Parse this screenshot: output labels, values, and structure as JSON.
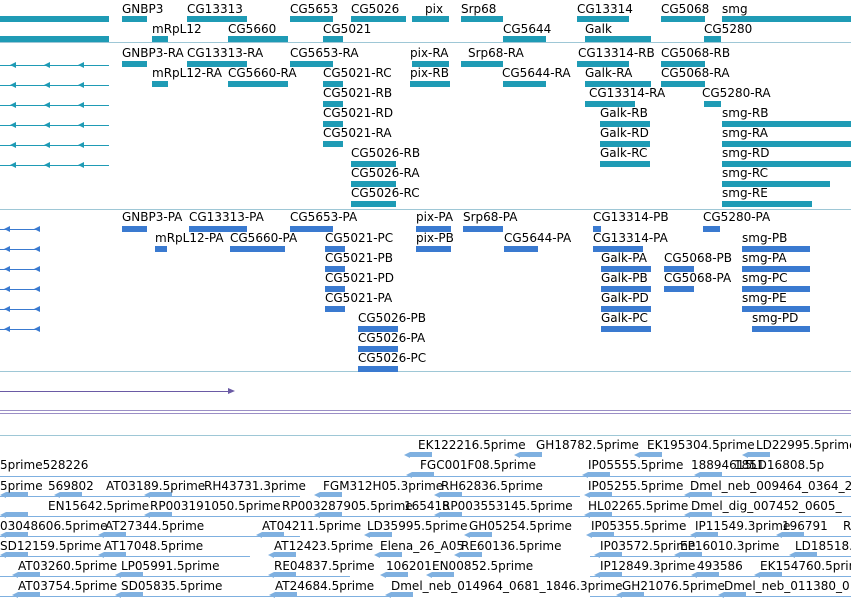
{
  "colors": {
    "gene_track": "#1f9bb5",
    "transcript_track": "#1f9bb5",
    "protein_track": "#3a7ad0",
    "est_track": "#7fb0e0",
    "arrow_track": "#6a5aa5"
  },
  "gene_track": {
    "labels": [
      "GNBP3",
      "CG13313",
      "CG5653",
      "CG5026",
      "pix",
      "Srp68",
      "CG13314",
      "CG5068",
      "smg",
      "mRpL12",
      "CG5660",
      "CG5021",
      "CG5644",
      "Galk",
      "CG5280"
    ]
  },
  "transcript_track": {
    "labels": [
      "GNBP3-RA",
      "CG13313-RA",
      "CG5653-RA",
      "pix-RA",
      "Srp68-RA",
      "CG13314-RB",
      "CG5068-RB",
      "mRpL12-RA",
      "CG5660-RA",
      "CG5021-RC",
      "pix-RB",
      "CG5644-RA",
      "Galk-RA",
      "CG5068-RA",
      "CG5021-RB",
      "CG13314-RA",
      "CG5280-RA",
      "CG5021-RD",
      "Galk-RB",
      "smg-RB",
      "CG5021-RA",
      "Galk-RD",
      "smg-RA",
      "CG5026-RB",
      "Galk-RC",
      "smg-RD",
      "CG5026-RA",
      "smg-RC",
      "CG5026-RC",
      "smg-RE"
    ]
  },
  "protein_track": {
    "labels": [
      "GNBP3-PA",
      "CG13313-PA",
      "CG5653-PA",
      "pix-PA",
      "Srp68-PA",
      "CG13314-PB",
      "CG5280-PA",
      "mRpL12-PA",
      "CG5660-PA",
      "CG5021-PC",
      "pix-PB",
      "CG5644-PA",
      "CG13314-PA",
      "CG5021-PB",
      "Galk-PA",
      "CG5068-PB",
      "smg-PB",
      "CG5021-PD",
      "Galk-PB",
      "CG5068-PA",
      "smg-PA",
      "CG5021-PA",
      "Galk-PD",
      "smg-PC",
      "Galk-PC",
      "smg-PE",
      "CG5026-PB",
      "smg-PD",
      "CG5026-PA",
      "CG5026-PC"
    ]
  },
  "est_track": {
    "labels": [
      "EK122216.5prime",
      "GH18782.5prime",
      "EK195304.5prime",
      "LD22995.5prime",
      "5prime528226",
      "FGC001F08.5prime",
      "IP05555.5prime",
      "18894615",
      "1851",
      "LD16808.5p",
      "5prime",
      "569802",
      "AT03189.5prime",
      "RH43731.3prime",
      "FGM312H05.3prime",
      "RH62836.5prime",
      "IP05255.5prime",
      "Dmel_neb_009464_0364_2",
      "EN15642.5prime",
      "RP003191050.5prime",
      "RP003287905.5prime",
      "165418",
      "RP003553145.5prime",
      "HL02265.5prime",
      "Dmel_dig_007452_0605_",
      "03048606.5prime",
      "AT27344.5prime",
      "AT04211.5prime",
      "LD35995.5prime",
      "GH05254.5prime",
      "IP05355.5prime",
      "IP11549.3prime",
      "196791",
      "R",
      "SD12159.5prime",
      "AT17048.5prime",
      "AT12423.5prime",
      "Elena_26_A05",
      "RE60136.5prime",
      "IP03572.5prime",
      "EP16010.3prime",
      "LD18518.",
      "AT03260.5prime",
      "LP05991.5prime",
      "RE04837.5prime",
      "106201",
      "EN00852.5prime",
      "IP12849.3prime",
      "493586",
      "EK154760.5prime",
      "AT03754.5prime",
      "SD05835.5prime",
      "AT24684.5prime",
      "Dmel_neb_014964_0681_1846.3prime",
      "GH21076.5prime",
      "Dmel_neb_011380_0"
    ]
  }
}
